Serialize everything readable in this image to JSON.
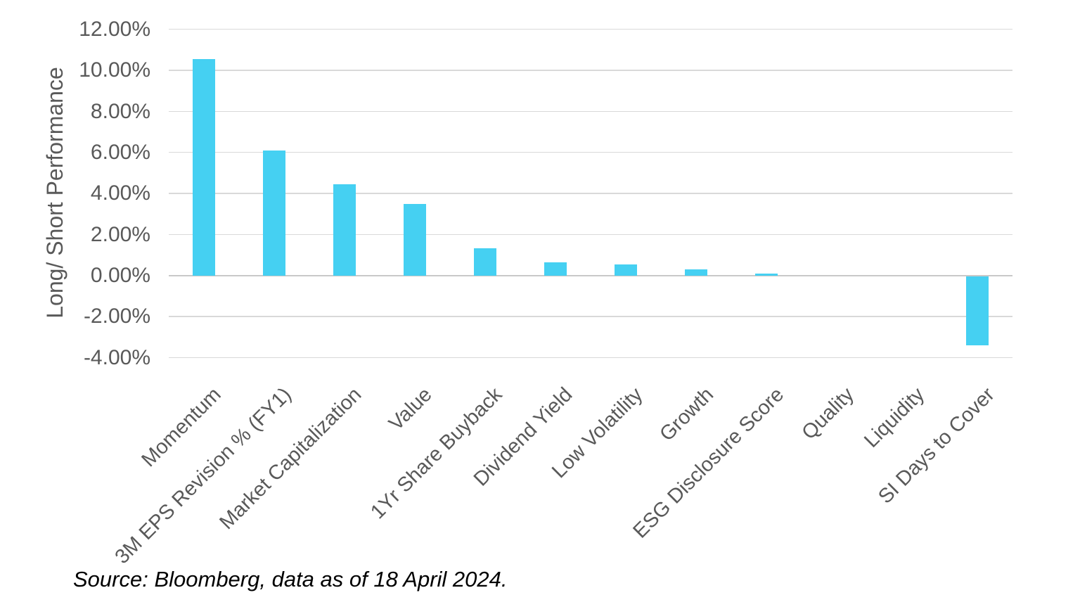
{
  "chart_data": {
    "type": "bar",
    "title": "",
    "xlabel": "",
    "ylabel": "Long/ Short Performance",
    "categories": [
      "Momentum",
      "3M EPS Revision % (FY1)",
      "Market Capitalization",
      "Value",
      "1Yr Share Buyback",
      "Dividend Yield",
      "Low Volatility",
      "Growth",
      "ESG Disclosure Score",
      "Quality",
      "Liquidity",
      "SI Days to Cover"
    ],
    "values": [
      10.55,
      6.1,
      4.45,
      3.5,
      1.35,
      0.65,
      0.55,
      0.3,
      0.1,
      0.0,
      0.0,
      -3.35
    ],
    "value_unit": "%",
    "ylim": [
      -4,
      12
    ],
    "ytick_step": 2,
    "ytick_labels": [
      "12.00%",
      "10.00%",
      "8.00%",
      "6.00%",
      "4.00%",
      "2.00%",
      "0.00%",
      "-2.00%",
      "-4.00%"
    ],
    "ytick_values": [
      12,
      10,
      8,
      6,
      4,
      2,
      0,
      -2,
      -4
    ],
    "grid": true,
    "legend": "none",
    "bar_color": "#45d0f2",
    "gridline_color": "#d9d9d9",
    "axis_text_color": "#595959"
  },
  "source_note": "Source: Bloomberg, data as of 18 April 2024."
}
